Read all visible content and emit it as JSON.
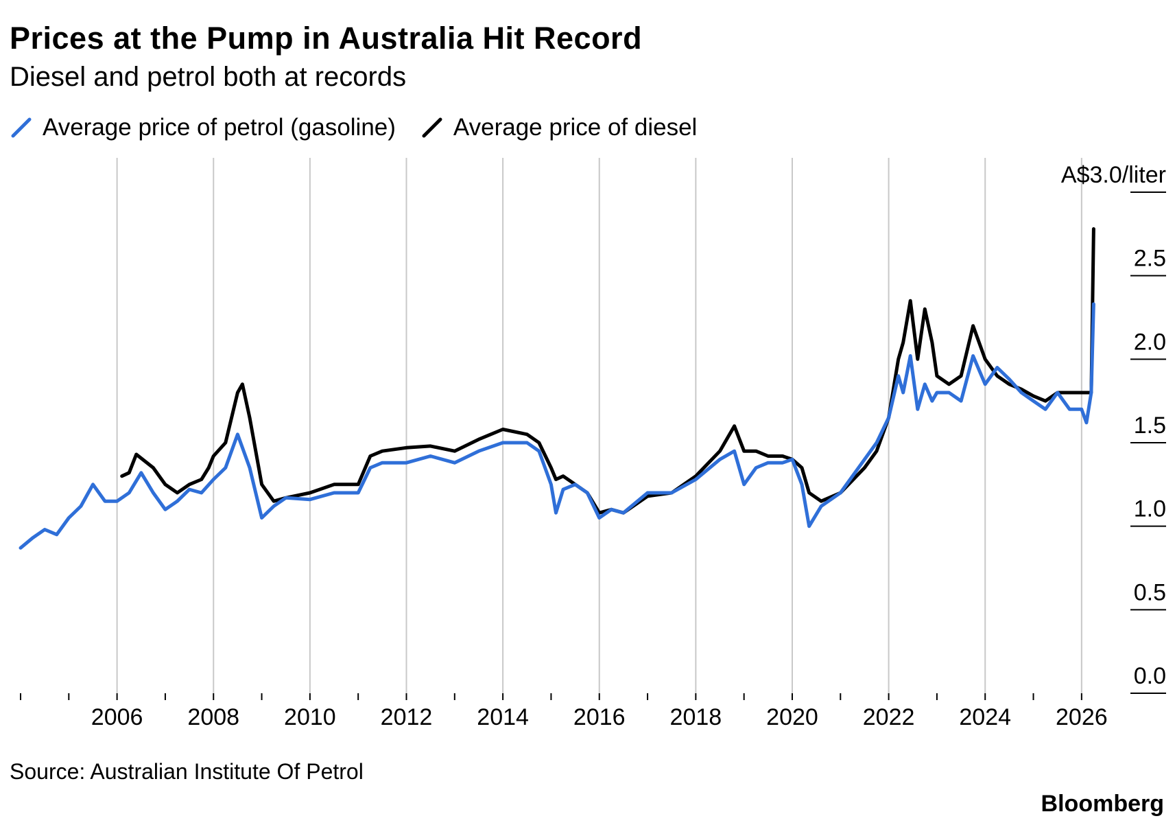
{
  "chart_data": {
    "type": "line",
    "title": "Prices at the Pump in Australia Hit Record",
    "subtitle": "Diesel and petrol both at records",
    "unit_label": "A$3.0/liter",
    "xlabel": "",
    "ylabel": "A$/liter",
    "xlim": [
      2004.0,
      2026.5
    ],
    "ylim": [
      0.0,
      3.0
    ],
    "x_ticks": [
      2006,
      2008,
      2010,
      2012,
      2014,
      2016,
      2018,
      2020,
      2022,
      2024,
      2026
    ],
    "x_tick_labels": [
      "2006",
      "2008",
      "2010",
      "2012",
      "2014",
      "2016",
      "2018",
      "2020",
      "2022",
      "2024",
      "2026"
    ],
    "y_ticks": [
      0.0,
      0.5,
      1.0,
      1.5,
      2.0,
      2.5,
      3.0
    ],
    "y_tick_labels": [
      "0.0",
      "0.5",
      "1.0",
      "1.5",
      "2.0",
      "2.5",
      "A$3.0/liter"
    ],
    "grid": "vertical",
    "legend_position": "top-left",
    "series": [
      {
        "name": "Average price of petrol (gasoline)",
        "color": "#2f6fd8",
        "x": [
          2004.0,
          2004.25,
          2004.5,
          2004.75,
          2005.0,
          2005.25,
          2005.5,
          2005.75,
          2006.0,
          2006.25,
          2006.5,
          2006.75,
          2007.0,
          2007.25,
          2007.5,
          2007.75,
          2008.0,
          2008.25,
          2008.5,
          2008.75,
          2009.0,
          2009.25,
          2009.5,
          2010.0,
          2010.5,
          2011.0,
          2011.25,
          2011.5,
          2012.0,
          2012.5,
          2013.0,
          2013.5,
          2014.0,
          2014.5,
          2014.75,
          2015.0,
          2015.1,
          2015.25,
          2015.5,
          2015.75,
          2016.0,
          2016.25,
          2016.5,
          2017.0,
          2017.5,
          2018.0,
          2018.5,
          2018.8,
          2019.0,
          2019.25,
          2019.5,
          2019.8,
          2020.0,
          2020.2,
          2020.35,
          2020.6,
          2021.0,
          2021.5,
          2021.75,
          2022.0,
          2022.2,
          2022.3,
          2022.45,
          2022.6,
          2022.75,
          2022.9,
          2023.0,
          2023.25,
          2023.5,
          2023.75,
          2024.0,
          2024.25,
          2024.5,
          2024.75,
          2025.0,
          2025.25,
          2025.5,
          2025.75,
          2026.0,
          2026.1,
          2026.2,
          2026.25
        ],
        "values": [
          0.87,
          0.93,
          0.98,
          0.95,
          1.05,
          1.12,
          1.25,
          1.15,
          1.15,
          1.2,
          1.32,
          1.2,
          1.1,
          1.15,
          1.22,
          1.2,
          1.28,
          1.35,
          1.55,
          1.35,
          1.05,
          1.12,
          1.17,
          1.16,
          1.2,
          1.2,
          1.35,
          1.38,
          1.38,
          1.42,
          1.38,
          1.45,
          1.5,
          1.5,
          1.45,
          1.25,
          1.08,
          1.22,
          1.25,
          1.2,
          1.05,
          1.1,
          1.08,
          1.2,
          1.2,
          1.28,
          1.4,
          1.45,
          1.25,
          1.35,
          1.38,
          1.38,
          1.4,
          1.25,
          1.0,
          1.12,
          1.2,
          1.4,
          1.5,
          1.65,
          1.9,
          1.8,
          2.02,
          1.7,
          1.85,
          1.75,
          1.8,
          1.8,
          1.75,
          2.02,
          1.85,
          1.95,
          1.88,
          1.8,
          1.75,
          1.7,
          1.8,
          1.7,
          1.7,
          1.62,
          1.8,
          2.33
        ]
      },
      {
        "name": "Average price of diesel",
        "color": "#000000",
        "x": [
          2006.1,
          2006.25,
          2006.4,
          2006.75,
          2007.0,
          2007.25,
          2007.5,
          2007.75,
          2007.9,
          2008.0,
          2008.25,
          2008.5,
          2008.6,
          2008.75,
          2009.0,
          2009.25,
          2009.5,
          2010.0,
          2010.5,
          2011.0,
          2011.25,
          2011.5,
          2012.0,
          2012.5,
          2013.0,
          2013.5,
          2013.75,
          2014.0,
          2014.5,
          2014.75,
          2015.0,
          2015.1,
          2015.25,
          2015.5,
          2015.75,
          2016.0,
          2016.25,
          2016.5,
          2017.0,
          2017.5,
          2018.0,
          2018.5,
          2018.8,
          2019.0,
          2019.25,
          2019.5,
          2019.8,
          2020.0,
          2020.2,
          2020.35,
          2020.6,
          2021.0,
          2021.5,
          2021.75,
          2022.0,
          2022.2,
          2022.3,
          2022.45,
          2022.6,
          2022.75,
          2022.9,
          2023.0,
          2023.25,
          2023.5,
          2023.75,
          2024.0,
          2024.25,
          2024.5,
          2024.75,
          2025.0,
          2025.25,
          2025.5,
          2025.75,
          2026.0,
          2026.1,
          2026.2,
          2026.25
        ],
        "values": [
          1.3,
          1.32,
          1.43,
          1.35,
          1.25,
          1.2,
          1.25,
          1.28,
          1.35,
          1.42,
          1.5,
          1.8,
          1.85,
          1.65,
          1.25,
          1.15,
          1.17,
          1.2,
          1.25,
          1.25,
          1.42,
          1.45,
          1.47,
          1.48,
          1.45,
          1.52,
          1.55,
          1.58,
          1.55,
          1.5,
          1.35,
          1.28,
          1.3,
          1.25,
          1.2,
          1.08,
          1.1,
          1.08,
          1.18,
          1.2,
          1.3,
          1.45,
          1.6,
          1.45,
          1.45,
          1.42,
          1.42,
          1.4,
          1.35,
          1.2,
          1.15,
          1.2,
          1.35,
          1.45,
          1.65,
          2.0,
          2.1,
          2.35,
          2.0,
          2.3,
          2.1,
          1.9,
          1.85,
          1.9,
          2.2,
          2.0,
          1.9,
          1.85,
          1.82,
          1.78,
          1.75,
          1.8,
          1.8,
          1.8,
          1.8,
          1.8,
          2.78
        ]
      }
    ]
  },
  "source": "Source: Australian Institute Of Petrol",
  "brand": "Bloomberg"
}
